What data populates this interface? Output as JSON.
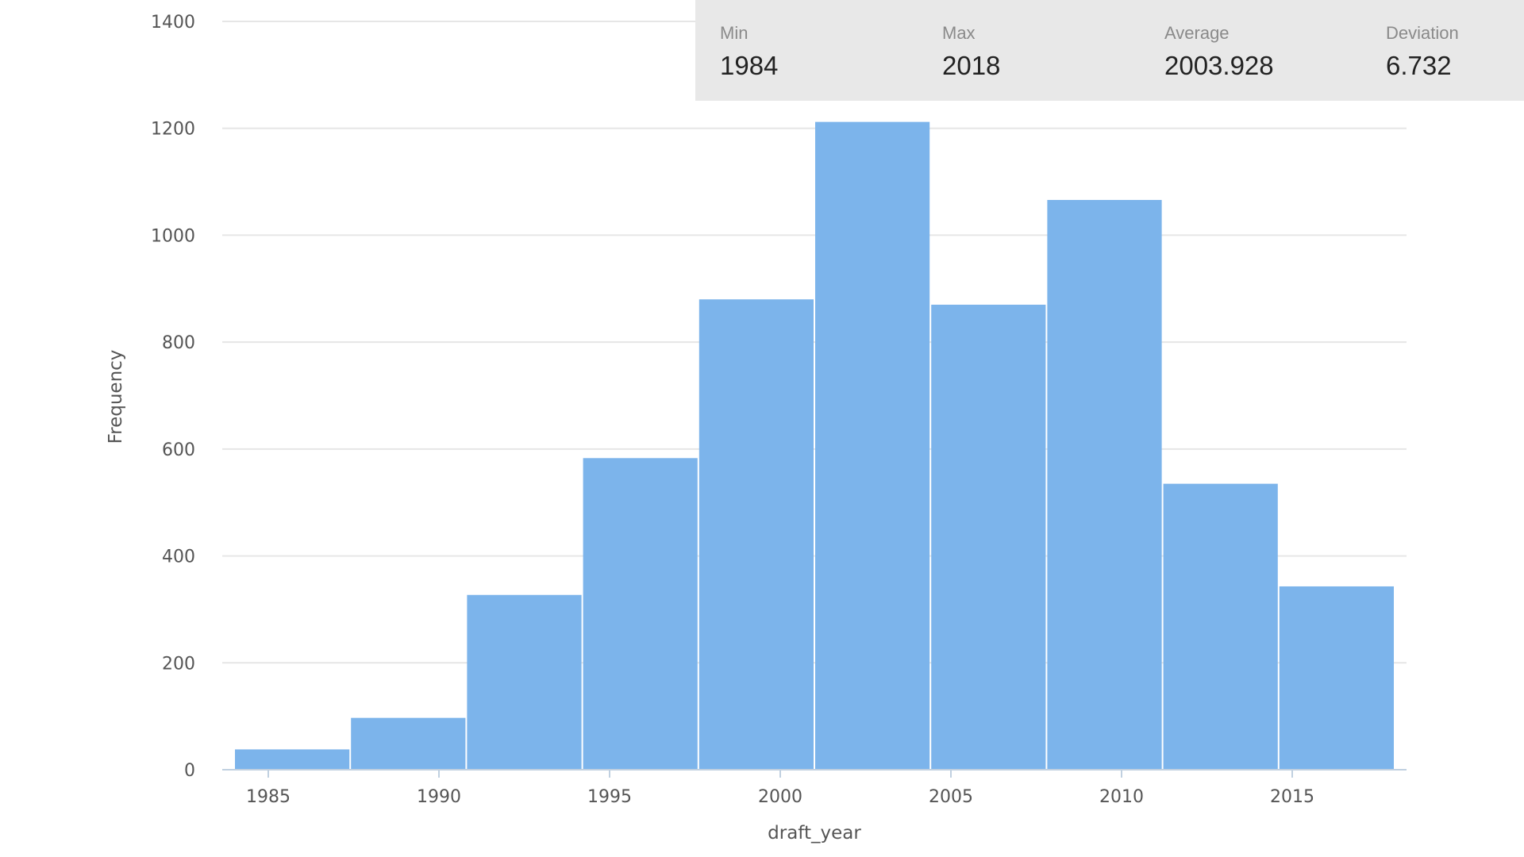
{
  "stats": {
    "min": {
      "label": "Min",
      "value": "1984"
    },
    "max": {
      "label": "Max",
      "value": "2018"
    },
    "average": {
      "label": "Average",
      "value": "2003.928"
    },
    "deviation": {
      "label": "Deviation",
      "value": "6.732"
    }
  },
  "colors": {
    "bar": "#7cb4eb",
    "grid": "#e6e6e6",
    "axis": "#c0d0e0",
    "panel": "#e8e8e8"
  },
  "chart_data": {
    "type": "bar",
    "histogram": true,
    "xlabel": "draft_year",
    "ylabel": "Frequency",
    "xlim": [
      1984,
      2018
    ],
    "ylim": [
      0,
      1400
    ],
    "yticks": [
      0,
      200,
      400,
      600,
      800,
      1000,
      1200,
      1400
    ],
    "xticks": [
      1985,
      1990,
      1995,
      2000,
      2005,
      2010,
      2015
    ],
    "grid": true,
    "bins": [
      {
        "x0": 1984.0,
        "x1": 1987.4,
        "value": 38
      },
      {
        "x0": 1987.4,
        "x1": 1990.8,
        "value": 97
      },
      {
        "x0": 1990.8,
        "x1": 1994.2,
        "value": 327
      },
      {
        "x0": 1994.2,
        "x1": 1997.6,
        "value": 583
      },
      {
        "x0": 1997.6,
        "x1": 2001.0,
        "value": 880
      },
      {
        "x0": 2001.0,
        "x1": 2004.4,
        "value": 1212
      },
      {
        "x0": 2004.4,
        "x1": 2007.8,
        "value": 870
      },
      {
        "x0": 2007.8,
        "x1": 2011.2,
        "value": 1066
      },
      {
        "x0": 2011.2,
        "x1": 2014.6,
        "value": 535
      },
      {
        "x0": 2014.6,
        "x1": 2018.0,
        "value": 343
      }
    ]
  }
}
